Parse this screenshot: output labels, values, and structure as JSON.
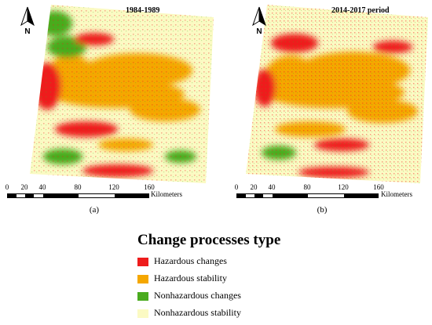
{
  "panels": [
    {
      "map_title": "1984-1989",
      "north_label": "N",
      "scale": {
        "ticks": [
          "0",
          "20",
          "40",
          "80",
          "120",
          "160"
        ],
        "unit": "Kilometers"
      },
      "caption": "(a)"
    },
    {
      "map_title": "2014-2017 period",
      "north_label": "N",
      "scale": {
        "ticks": [
          "0",
          "20",
          "40",
          "80",
          "120",
          "160"
        ],
        "unit": "Kilometers"
      },
      "caption": "(b)"
    }
  ],
  "legend": {
    "title": "Change processes type",
    "items": [
      {
        "label": "Hazardous changes",
        "color": "#ee1c1c"
      },
      {
        "label": "Hazardous stability",
        "color": "#f5a700"
      },
      {
        "label": "Nonhazardous changes",
        "color": "#4aab1e"
      },
      {
        "label": "Nonhazardous stability",
        "color": "#fbfac3"
      }
    ]
  },
  "icons": {
    "north_arrow": "north-arrow-icon"
  }
}
